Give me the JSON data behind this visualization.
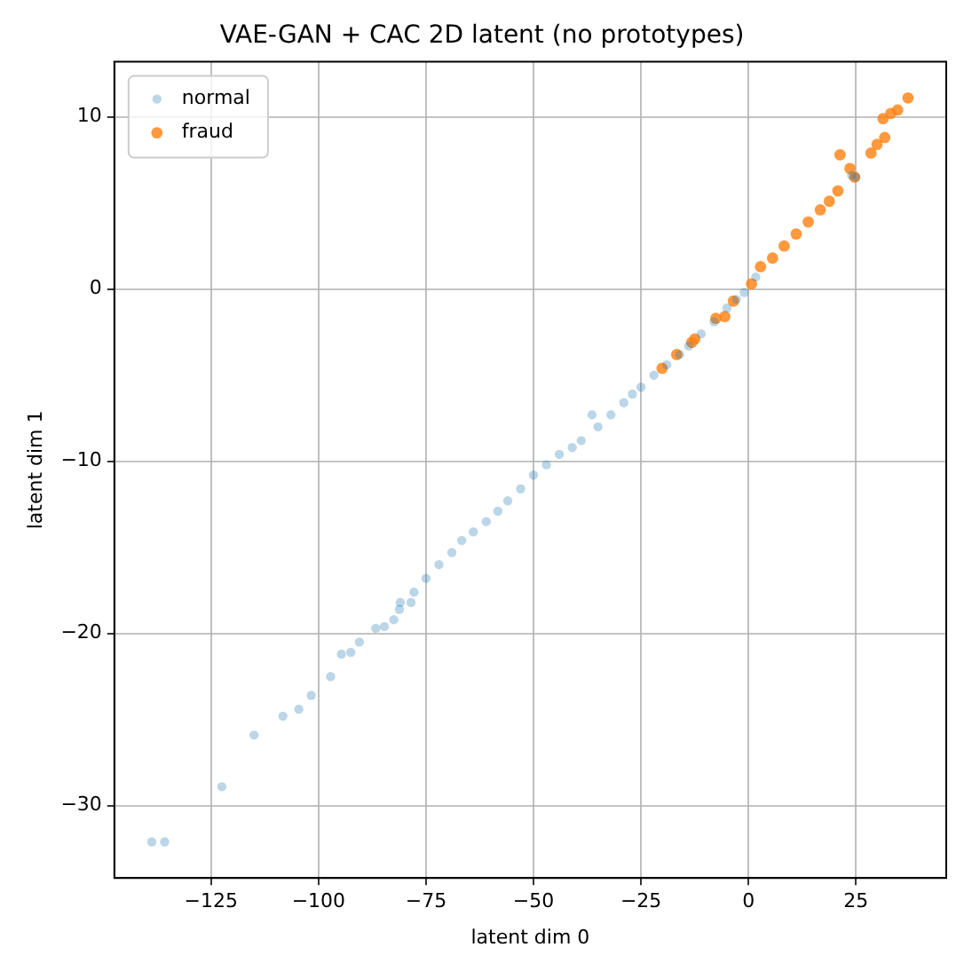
{
  "chart_data": {
    "type": "scatter",
    "title": "VAE-GAN + CAC 2D latent (no prototypes)",
    "xlabel": "latent dim 0",
    "ylabel": "latent dim 1",
    "xlim": [
      -147.5,
      46
    ],
    "ylim": [
      -34.2,
      13.2
    ],
    "xticks": [
      -125,
      -100,
      -75,
      -50,
      -25,
      0,
      25
    ],
    "yticks": [
      -30,
      -20,
      -10,
      0,
      10
    ],
    "grid": true,
    "legend": "top left",
    "marker": "circle",
    "series": [
      {
        "name": "normal",
        "color": "#1f77b4",
        "x": [
          -138.8,
          -135.8,
          -122.5,
          -115,
          -108.3,
          -104.6,
          -101.7,
          -97.2,
          -94.7,
          -92.5,
          -90.5,
          -86.7,
          -84.7,
          -82.5,
          -81.2,
          -81,
          -78.5,
          -77.8,
          -75,
          -72,
          -69,
          -66.7,
          -64,
          -61,
          -58.3,
          -56,
          -53,
          -50,
          -47,
          -44,
          -41,
          -38.9,
          -36.4,
          -35,
          -32,
          -29,
          -27,
          -25,
          -22,
          -19,
          -16,
          -13.9,
          -11,
          -8,
          -5,
          -2.8,
          -1,
          1.7,
          24,
          25
        ],
        "values": [
          -32.1,
          -32.1,
          -28.9,
          -25.9,
          -24.8,
          -24.4,
          -23.6,
          -22.5,
          -21.2,
          -21.1,
          -20.5,
          -19.7,
          -19.6,
          -19.2,
          -18.6,
          -18.2,
          -18.2,
          -17.6,
          -16.8,
          -16,
          -15.3,
          -14.6,
          -14.1,
          -13.5,
          -12.9,
          -12.3,
          -11.6,
          -10.8,
          -10.2,
          -9.6,
          -9.2,
          -8.8,
          -7.3,
          -8,
          -7.3,
          -6.6,
          -6.1,
          -5.7,
          -5,
          -4.4,
          -3.8,
          -3.3,
          -2.6,
          -1.9,
          -1.1,
          -0.6,
          -0.2,
          0.7,
          6.6,
          6.5
        ]
      },
      {
        "name": "fraud",
        "color": "#ff7f0e",
        "x": [
          37.1,
          34.7,
          33.1,
          31.3,
          31.7,
          29.9,
          28.5,
          21.3,
          23.6,
          24.7,
          20.8,
          18.8,
          16.7,
          13.9,
          11.1,
          8.3,
          5.6,
          2.8,
          0.7,
          -3.5,
          -5.5,
          -7.6,
          -12.5,
          -13.2,
          -16.7,
          -20.1
        ],
        "values": [
          11.1,
          10.4,
          10.2,
          9.9,
          8.8,
          8.4,
          7.9,
          7.8,
          7,
          6.5,
          5.7,
          5.1,
          4.6,
          3.9,
          3.2,
          2.5,
          1.8,
          1.3,
          0.3,
          -0.7,
          -1.6,
          -1.7,
          -2.9,
          -3.1,
          -3.8,
          -4.6
        ]
      }
    ]
  }
}
